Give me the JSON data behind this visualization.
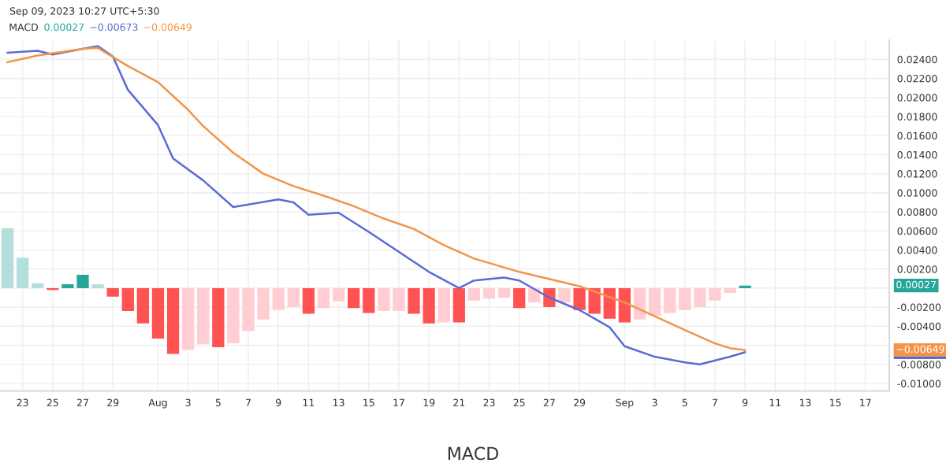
{
  "chart_data": {
    "type": "bar",
    "title": "MACD",
    "legend_title": "MACD",
    "x": [
      "2023-07-22",
      "2023-07-23",
      "2023-07-24",
      "2023-07-25",
      "2023-07-26",
      "2023-07-27",
      "2023-07-28",
      "2023-07-29",
      "2023-07-30",
      "2023-07-31",
      "2023-08-01",
      "2023-08-02",
      "2023-08-03",
      "2023-08-04",
      "2023-08-05",
      "2023-08-06",
      "2023-08-07",
      "2023-08-08",
      "2023-08-09",
      "2023-08-10",
      "2023-08-11",
      "2023-08-12",
      "2023-08-13",
      "2023-08-14",
      "2023-08-15",
      "2023-08-16",
      "2023-08-17",
      "2023-08-18",
      "2023-08-19",
      "2023-08-20",
      "2023-08-21",
      "2023-08-22",
      "2023-08-23",
      "2023-08-24",
      "2023-08-25",
      "2023-08-26",
      "2023-08-27",
      "2023-08-28",
      "2023-08-29",
      "2023-08-30",
      "2023-08-31",
      "2023-09-01",
      "2023-09-02",
      "2023-09-03",
      "2023-09-04",
      "2023-09-05",
      "2023-09-06",
      "2023-09-07",
      "2023-09-08",
      "2023-09-09"
    ],
    "series": [
      {
        "color": "#26a69a",
        "values": [
          0.0063,
          0.0032,
          0.0005,
          -0.0002,
          0.0004,
          0.0014,
          0.0004,
          -0.0009,
          -0.0024,
          -0.0037,
          -0.0053,
          -0.0069,
          -0.0065,
          -0.0059,
          -0.0062,
          -0.0058,
          -0.0045,
          -0.0033,
          -0.0023,
          -0.002,
          -0.0027,
          -0.0021,
          -0.0014,
          -0.0021,
          -0.0026,
          -0.0024,
          -0.0024,
          -0.0027,
          -0.0037,
          -0.0036,
          -0.0036,
          -0.0013,
          -0.0011,
          -0.001,
          -0.0021,
          -0.0015,
          -0.002,
          -0.0015,
          -0.0023,
          -0.0027,
          -0.0032,
          -0.0036,
          -0.0033,
          -0.0029,
          -0.0026,
          -0.0023,
          -0.002,
          -0.0013,
          -0.0005,
          0.00027
        ],
        "colors": [
          "#b2dfdb",
          "#b2dfdb",
          "#b2dfdb",
          "#ff5252",
          "#26a69a",
          "#26a69a",
          "#b2dfdb",
          "#ff5252",
          "#ff5252",
          "#ff5252",
          "#ff5252",
          "#ff5252",
          "#ffcdd2",
          "#ffcdd2",
          "#ff5252",
          "#ffcdd2",
          "#ffcdd2",
          "#ffcdd2",
          "#ffcdd2",
          "#ffcdd2",
          "#ff5252",
          "#ffcdd2",
          "#ffcdd2",
          "#ff5252",
          "#ff5252",
          "#ffcdd2",
          "#ffcdd2",
          "#ff5252",
          "#ff5252",
          "#ffcdd2",
          "#ff5252",
          "#ffcdd2",
          "#ffcdd2",
          "#ffcdd2",
          "#ff5252",
          "#ffcdd2",
          "#ff5252",
          "#ffcdd2",
          "#ff5252",
          "#ff5252",
          "#ff5252",
          "#ff5252",
          "#ffcdd2",
          "#ffcdd2",
          "#ffcdd2",
          "#ffcdd2",
          "#ffcdd2",
          "#ffcdd2",
          "#ffcdd2",
          "#26a69a"
        ]
      },
      {
        "type": "line",
        "color": "#5b6bd5",
        "x": [
          "2023-07-22",
          "2023-07-24",
          "2023-07-25",
          "2023-07-27",
          "2023-07-28",
          "2023-07-29",
          "2023-07-30",
          "2023-08-01",
          "2023-08-02",
          "2023-08-04",
          "2023-08-06",
          "2023-08-09",
          "2023-08-10",
          "2023-08-11",
          "2023-08-13",
          "2023-08-15",
          "2023-08-19",
          "2023-08-21",
          "2023-08-22",
          "2023-08-24",
          "2023-08-25",
          "2023-08-27",
          "2023-08-29",
          "2023-08-31",
          "2023-09-01",
          "2023-09-03",
          "2023-09-05",
          "2023-09-06",
          "2023-09-08",
          "2023-09-09"
        ],
        "values": [
          0.0247,
          0.0249,
          0.0245,
          0.0251,
          0.0254,
          0.0243,
          0.0208,
          0.0171,
          0.0136,
          0.0113,
          0.0085,
          0.0093,
          0.009,
          0.0077,
          0.0079,
          0.0059,
          0.0017,
          0.0,
          0.0008,
          0.0011,
          0.0008,
          -0.001,
          -0.0023,
          -0.0041,
          -0.0061,
          -0.0072,
          -0.0078,
          -0.008,
          -0.0072,
          -0.00673
        ]
      },
      {
        "type": "line",
        "color": "#f0954a",
        "x": [
          "2023-07-22",
          "2023-07-24",
          "2023-07-27",
          "2023-07-28",
          "2023-07-30",
          "2023-08-01",
          "2023-08-03",
          "2023-08-04",
          "2023-08-06",
          "2023-08-08",
          "2023-08-10",
          "2023-08-12",
          "2023-08-14",
          "2023-08-16",
          "2023-08-18",
          "2023-08-20",
          "2023-08-22",
          "2023-08-25",
          "2023-08-29",
          "2023-09-01",
          "2023-09-05",
          "2023-09-07",
          "2023-09-08",
          "2023-09-09"
        ],
        "values": [
          0.0237,
          0.0244,
          0.0251,
          0.0252,
          0.0233,
          0.0216,
          0.0187,
          0.017,
          0.0142,
          0.012,
          0.0107,
          0.0097,
          0.0086,
          0.0073,
          0.0062,
          0.0045,
          0.0031,
          0.0017,
          0.0002,
          -0.0015,
          -0.0044,
          -0.0058,
          -0.0063,
          -0.00649
        ]
      }
    ],
    "annotations": [
      "Sep 09, 2023 10:27 UTC+5:30",
      "0.00027",
      "−0.00673",
      "−0.00649"
    ],
    "xlim": [
      "2023-07-21T12:00",
      "2023-09-18T14:00"
    ],
    "xticks": [
      {
        "value": "2023-07-23",
        "label": "23"
      },
      {
        "value": "2023-07-25",
        "label": "25"
      },
      {
        "value": "2023-07-27",
        "label": "27"
      },
      {
        "value": "2023-07-29",
        "label": "29"
      },
      {
        "value": "2023-08-01",
        "label": "Aug"
      },
      {
        "value": "2023-08-03",
        "label": "3"
      },
      {
        "value": "2023-08-05",
        "label": "5"
      },
      {
        "value": "2023-08-07",
        "label": "7"
      },
      {
        "value": "2023-08-09",
        "label": "9"
      },
      {
        "value": "2023-08-11",
        "label": "11"
      },
      {
        "value": "2023-08-13",
        "label": "13"
      },
      {
        "value": "2023-08-15",
        "label": "15"
      },
      {
        "value": "2023-08-17",
        "label": "17"
      },
      {
        "value": "2023-08-19",
        "label": "19"
      },
      {
        "value": "2023-08-21",
        "label": "21"
      },
      {
        "value": "2023-08-23",
        "label": "23"
      },
      {
        "value": "2023-08-25",
        "label": "25"
      },
      {
        "value": "2023-08-27",
        "label": "27"
      },
      {
        "value": "2023-08-29",
        "label": "29"
      },
      {
        "value": "2023-09-01",
        "label": "Sep"
      },
      {
        "value": "2023-09-03",
        "label": "3"
      },
      {
        "value": "2023-09-05",
        "label": "5"
      },
      {
        "value": "2023-09-07",
        "label": "7"
      },
      {
        "value": "2023-09-09",
        "label": "9"
      },
      {
        "value": "2023-09-11",
        "label": "11"
      },
      {
        "value": "2023-09-13",
        "label": "13"
      },
      {
        "value": "2023-09-15",
        "label": "15"
      },
      {
        "value": "2023-09-17",
        "label": "17"
      }
    ],
    "ylim": [
      -0.0108,
      0.026
    ],
    "yticks": [
      {
        "value": -0.01,
        "label": "-0.01000"
      },
      {
        "value": -0.008,
        "label": "-0.00800"
      },
      {
        "value": -0.006,
        "label": null
      },
      {
        "value": -0.004,
        "label": "-0.00400"
      },
      {
        "value": -0.002,
        "label": "-0.00200"
      },
      {
        "value": 0,
        "label": null
      },
      {
        "value": 0.002,
        "label": "0.00200"
      },
      {
        "value": 0.004,
        "label": "0.00400"
      },
      {
        "value": 0.006,
        "label": "0.00600"
      },
      {
        "value": 0.008,
        "label": "0.00800"
      },
      {
        "value": 0.01,
        "label": "0.01000"
      },
      {
        "value": 0.012,
        "label": "0.01200"
      },
      {
        "value": 0.014,
        "label": "0.01400"
      },
      {
        "value": 0.016,
        "label": "0.01600"
      },
      {
        "value": 0.018,
        "label": "0.01800"
      },
      {
        "value": 0.02,
        "label": "0.02000"
      },
      {
        "value": 0.022,
        "label": "0.02200"
      },
      {
        "value": 0.024,
        "label": "0.02400"
      }
    ],
    "grid": true
  }
}
